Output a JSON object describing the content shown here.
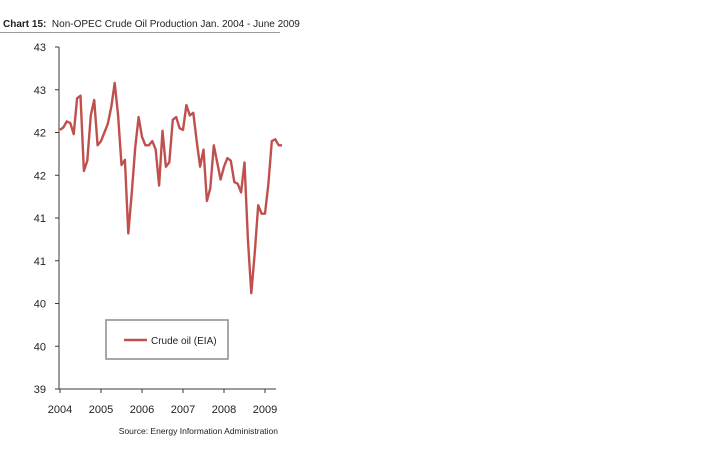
{
  "title": {
    "prefix": "Chart 15:",
    "text": "Non-OPEC Crude Oil Production Jan. 2004 - June 2009"
  },
  "source": "Source: Energy Information Administration",
  "chart_data": {
    "type": "line",
    "title": "Chart 15: Non-OPEC Crude Oil Production Jan. 2004 - June 2009",
    "xlabel": "",
    "ylabel": "",
    "x_tick_labels": [
      "2004",
      "2005",
      "2006",
      "2007",
      "2008",
      "2009"
    ],
    "y_tick_labels": [
      "43",
      "43",
      "42",
      "42",
      "41",
      "41",
      "40",
      "40",
      "39"
    ],
    "ylim": [
      39.0,
      43.0
    ],
    "grid": false,
    "legend": {
      "position": "lower-center",
      "entries": [
        "Crude oil (EIA)"
      ]
    },
    "series": [
      {
        "name": "Crude oil (EIA)",
        "color": "#c0504d",
        "x": [
          "2004-01",
          "2004-02",
          "2004-03",
          "2004-04",
          "2004-05",
          "2004-06",
          "2004-07",
          "2004-08",
          "2004-09",
          "2004-10",
          "2004-11",
          "2004-12",
          "2005-01",
          "2005-02",
          "2005-03",
          "2005-04",
          "2005-05",
          "2005-06",
          "2005-07",
          "2005-08",
          "2005-09",
          "2005-10",
          "2005-11",
          "2005-12",
          "2006-01",
          "2006-02",
          "2006-03",
          "2006-04",
          "2006-05",
          "2006-06",
          "2006-07",
          "2006-08",
          "2006-09",
          "2006-10",
          "2006-11",
          "2006-12",
          "2007-01",
          "2007-02",
          "2007-03",
          "2007-04",
          "2007-05",
          "2007-06",
          "2007-07",
          "2007-08",
          "2007-09",
          "2007-10",
          "2007-11",
          "2007-12",
          "2008-01",
          "2008-02",
          "2008-03",
          "2008-04",
          "2008-05",
          "2008-06",
          "2008-07",
          "2008-08",
          "2008-09",
          "2008-10",
          "2008-11",
          "2008-12",
          "2009-01",
          "2009-02",
          "2009-03",
          "2009-04",
          "2009-05",
          "2009-06"
        ],
        "values": [
          42.03,
          42.06,
          42.13,
          42.11,
          41.98,
          42.4,
          42.43,
          41.55,
          41.67,
          42.2,
          42.38,
          41.85,
          41.9,
          42.0,
          42.1,
          42.3,
          42.58,
          42.2,
          41.62,
          41.68,
          40.82,
          41.3,
          41.82,
          42.18,
          41.95,
          41.85,
          41.85,
          41.9,
          41.8,
          41.38,
          42.02,
          41.6,
          41.65,
          42.15,
          42.18,
          42.05,
          42.03,
          42.32,
          42.2,
          42.23,
          41.9,
          41.6,
          41.8,
          41.2,
          41.35,
          41.85,
          41.65,
          41.45,
          41.6,
          41.7,
          41.67,
          41.42,
          41.4,
          41.3,
          41.65,
          40.75,
          40.12,
          40.6,
          41.15,
          41.05,
          41.05,
          41.4,
          41.9,
          41.92,
          41.85,
          41.85
        ]
      }
    ]
  }
}
